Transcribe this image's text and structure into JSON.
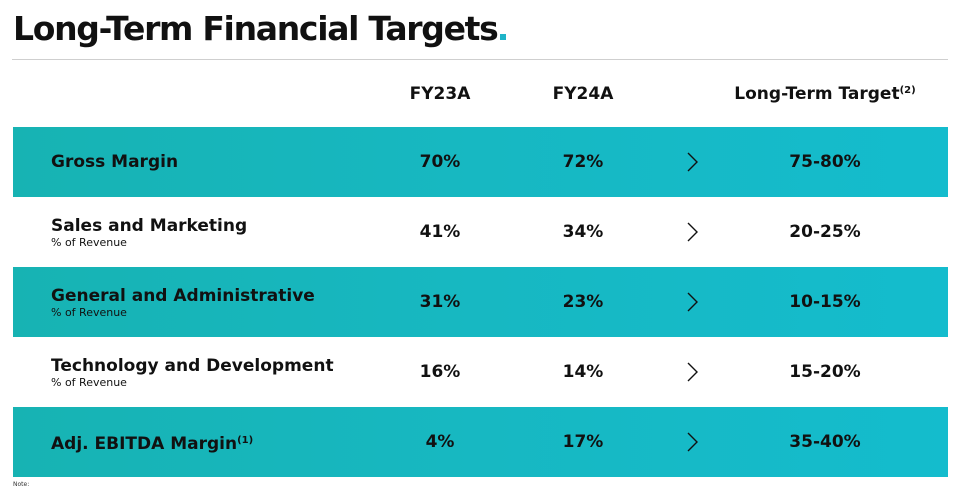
{
  "title": "Long-Term Financial Targets",
  "colors": {
    "accent": "#1fb4c8",
    "band": "#17b8c2",
    "text": "#111111"
  },
  "columns": {
    "fy23": "FY23A",
    "fy24": "FY24A",
    "target": "Long-Term Target",
    "target_footnote": "(2)"
  },
  "rows": [
    {
      "label": "Gross Margin",
      "footnote": "",
      "sublabel": "",
      "fy23": "70%",
      "fy24": "72%",
      "target": "75-80%",
      "banded": true
    },
    {
      "label": "Sales and Marketing",
      "footnote": "",
      "sublabel": "% of Revenue",
      "fy23": "41%",
      "fy24": "34%",
      "target": "20-25%",
      "banded": false
    },
    {
      "label": "General and Administrative",
      "footnote": "",
      "sublabel": "% of Revenue",
      "fy23": "31%",
      "fy24": "23%",
      "target": "10-15%",
      "banded": true
    },
    {
      "label": "Technology and Development",
      "footnote": "",
      "sublabel": "% of Revenue",
      "fy23": "16%",
      "fy24": "14%",
      "target": "15-20%",
      "banded": false
    },
    {
      "label": "Adj. EBITDA Margin",
      "footnote": "(1)",
      "sublabel": "",
      "fy23": "4%",
      "fy24": "17%",
      "target": "35-40%",
      "banded": true
    }
  ],
  "note": "Note:",
  "row_arrow_icon": "chevron-right-icon"
}
